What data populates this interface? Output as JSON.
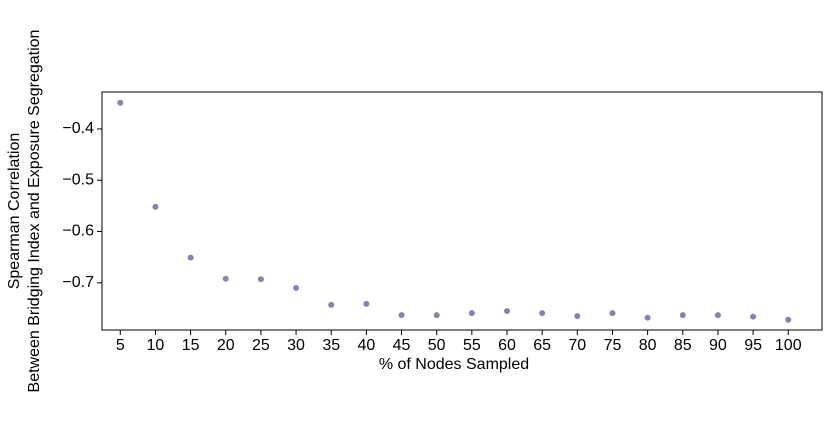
{
  "chart_data": {
    "type": "scatter",
    "xlabel": "% of Nodes Sampled",
    "ylabel": [
      "Spearman Correlation",
      "Between Bridging Index and Exposure Segregation"
    ],
    "series": [
      {
        "color": "#8a7fbd",
        "x": [
          5,
          10,
          15,
          20,
          25,
          30,
          35,
          40,
          45,
          50,
          55,
          60,
          65,
          70,
          75,
          80,
          85,
          90,
          95,
          100
        ],
        "values": [
          -0.349,
          -0.552,
          -0.651,
          -0.692,
          -0.693,
          -0.71,
          -0.743,
          -0.741,
          -0.763,
          -0.763,
          -0.759,
          -0.755,
          -0.759,
          -0.765,
          -0.759,
          -0.768,
          -0.763,
          -0.763,
          -0.766,
          -0.772
        ]
      }
    ],
    "xlim": [
      2.4,
      104.8
    ],
    "ylim": [
      -0.792,
      -0.328
    ],
    "xticks": [
      5,
      10,
      15,
      20,
      25,
      30,
      35,
      40,
      45,
      50,
      55,
      60,
      65,
      70,
      75,
      80,
      85,
      90,
      95,
      100
    ],
    "yticks": [
      {
        "value": -0.7,
        "label": "−0.7"
      },
      {
        "value": -0.6,
        "label": "−0.6"
      },
      {
        "value": -0.5,
        "label": "−0.5"
      },
      {
        "value": -0.4,
        "label": "−0.4"
      }
    ],
    "grid": false
  }
}
